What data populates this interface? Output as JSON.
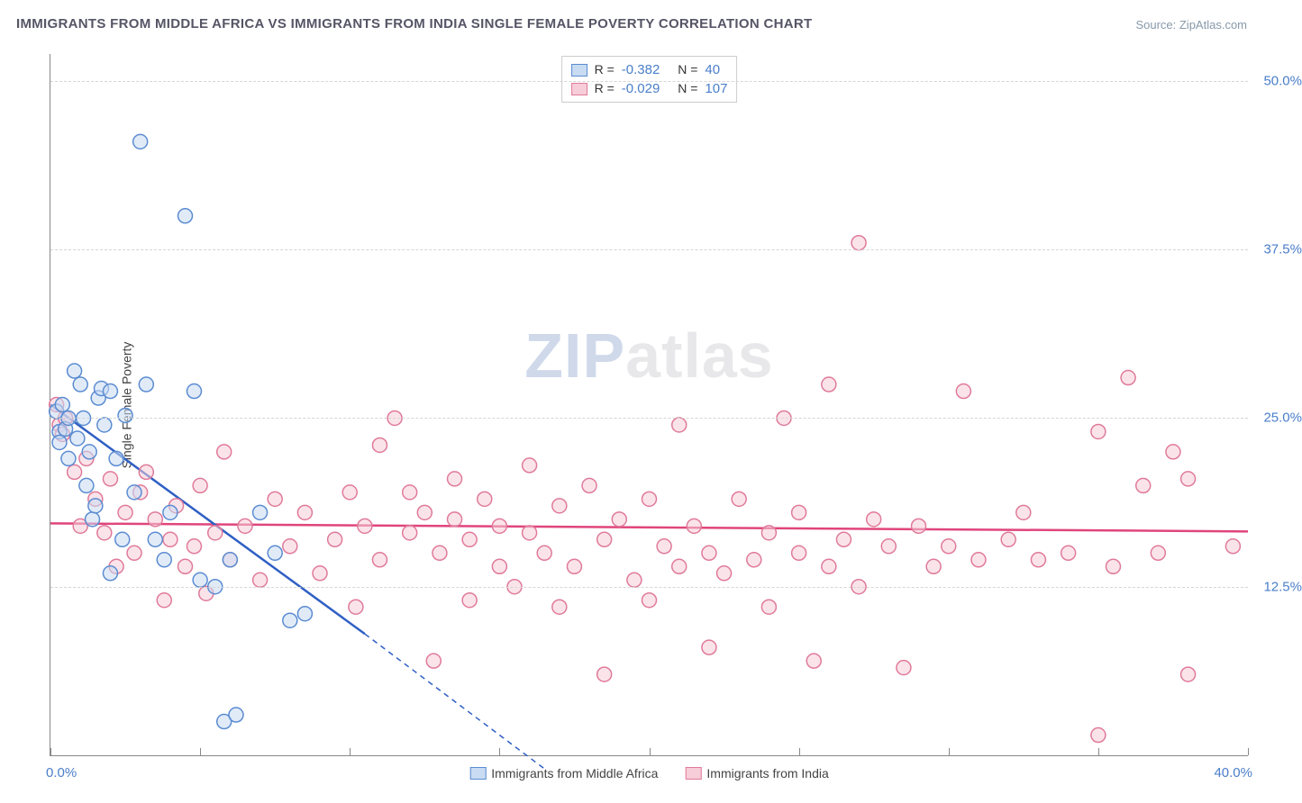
{
  "title": "IMMIGRANTS FROM MIDDLE AFRICA VS IMMIGRANTS FROM INDIA SINGLE FEMALE POVERTY CORRELATION CHART",
  "source": "Source: ZipAtlas.com",
  "ylabel": "Single Female Poverty",
  "watermark_zip": "ZIP",
  "watermark_atlas": "atlas",
  "chart": {
    "type": "scatter",
    "xlim": [
      0,
      40
    ],
    "ylim": [
      0,
      52
    ],
    "x_ticks_minor": [
      0,
      5,
      10,
      15,
      20,
      25,
      30,
      35,
      40
    ],
    "y_gridlines": [
      12.5,
      25.0,
      37.5,
      50.0
    ],
    "y_tick_labels": [
      "12.5%",
      "25.0%",
      "37.5%",
      "50.0%"
    ],
    "x_tick_left": "0.0%",
    "x_tick_right": "40.0%",
    "background_color": "#ffffff",
    "grid_color": "#d5d5d5",
    "marker_radius": 8,
    "marker_stroke_width": 1.5,
    "series": [
      {
        "name": "Immigrants from Middle Africa",
        "R": "-0.382",
        "N": "40",
        "fill": "#c8dbf2",
        "stroke": "#5b8cd1",
        "fill_opacity": 0.55,
        "trend": {
          "x1": 0,
          "y1": 26.0,
          "x2": 10.5,
          "y2": 9.0,
          "extend_x2": 16.5,
          "extend_y2": -1.0,
          "color": "#2f5fc4",
          "width": 2.5
        },
        "points": [
          [
            0.2,
            25.5
          ],
          [
            0.3,
            24.0
          ],
          [
            0.3,
            23.2
          ],
          [
            0.4,
            26.0
          ],
          [
            0.5,
            24.2
          ],
          [
            0.6,
            22.0
          ],
          [
            0.6,
            25.0
          ],
          [
            0.8,
            28.5
          ],
          [
            0.9,
            23.5
          ],
          [
            1.0,
            27.5
          ],
          [
            1.1,
            25.0
          ],
          [
            1.2,
            20.0
          ],
          [
            1.3,
            22.5
          ],
          [
            1.4,
            17.5
          ],
          [
            1.5,
            18.5
          ],
          [
            1.6,
            26.5
          ],
          [
            1.7,
            27.2
          ],
          [
            1.8,
            24.5
          ],
          [
            2.0,
            27.0
          ],
          [
            2.0,
            13.5
          ],
          [
            2.2,
            22.0
          ],
          [
            2.4,
            16.0
          ],
          [
            2.5,
            25.2
          ],
          [
            2.8,
            19.5
          ],
          [
            3.0,
            45.5
          ],
          [
            3.2,
            27.5
          ],
          [
            3.5,
            16.0
          ],
          [
            3.8,
            14.5
          ],
          [
            4.0,
            18.0
          ],
          [
            4.5,
            40.0
          ],
          [
            4.8,
            27.0
          ],
          [
            5.0,
            13.0
          ],
          [
            5.5,
            12.5
          ],
          [
            5.8,
            2.5
          ],
          [
            6.0,
            14.5
          ],
          [
            6.2,
            3.0
          ],
          [
            7.0,
            18.0
          ],
          [
            7.5,
            15.0
          ],
          [
            8.0,
            10.0
          ],
          [
            8.5,
            10.5
          ]
        ]
      },
      {
        "name": "Immigrants from India",
        "R": "-0.029",
        "N": "107",
        "fill": "#f6cdd8",
        "stroke": "#e07a9a",
        "fill_opacity": 0.55,
        "trend": {
          "x1": 0,
          "y1": 17.2,
          "x2": 40,
          "y2": 16.6,
          "color": "#e0457c",
          "width": 2.5
        },
        "points": [
          [
            0.2,
            26.0
          ],
          [
            0.3,
            24.5
          ],
          [
            0.4,
            23.8
          ],
          [
            0.5,
            25.0
          ],
          [
            0.8,
            21.0
          ],
          [
            1.0,
            17.0
          ],
          [
            1.2,
            22.0
          ],
          [
            1.5,
            19.0
          ],
          [
            1.8,
            16.5
          ],
          [
            2.0,
            20.5
          ],
          [
            2.2,
            14.0
          ],
          [
            2.5,
            18.0
          ],
          [
            2.8,
            15.0
          ],
          [
            3.0,
            19.5
          ],
          [
            3.2,
            21.0
          ],
          [
            3.5,
            17.5
          ],
          [
            3.8,
            11.5
          ],
          [
            4.0,
            16.0
          ],
          [
            4.2,
            18.5
          ],
          [
            4.5,
            14.0
          ],
          [
            4.8,
            15.5
          ],
          [
            5.0,
            20.0
          ],
          [
            5.2,
            12.0
          ],
          [
            5.5,
            16.5
          ],
          [
            5.8,
            22.5
          ],
          [
            6.0,
            14.5
          ],
          [
            6.5,
            17.0
          ],
          [
            7.0,
            13.0
          ],
          [
            7.5,
            19.0
          ],
          [
            8.0,
            15.5
          ],
          [
            8.5,
            18.0
          ],
          [
            9.0,
            13.5
          ],
          [
            9.5,
            16.0
          ],
          [
            10.0,
            19.5
          ],
          [
            10.2,
            11.0
          ],
          [
            10.5,
            17.0
          ],
          [
            11.0,
            23.0
          ],
          [
            11.0,
            14.5
          ],
          [
            11.5,
            25.0
          ],
          [
            12.0,
            16.5
          ],
          [
            12.0,
            19.5
          ],
          [
            12.5,
            18.0
          ],
          [
            12.8,
            7.0
          ],
          [
            13.0,
            15.0
          ],
          [
            13.5,
            17.5
          ],
          [
            13.5,
            20.5
          ],
          [
            14.0,
            11.5
          ],
          [
            14.0,
            16.0
          ],
          [
            14.5,
            19.0
          ],
          [
            15.0,
            14.0
          ],
          [
            15.0,
            17.0
          ],
          [
            15.5,
            12.5
          ],
          [
            16.0,
            16.5
          ],
          [
            16.0,
            21.5
          ],
          [
            16.5,
            15.0
          ],
          [
            17.0,
            18.5
          ],
          [
            17.0,
            11.0
          ],
          [
            17.5,
            14.0
          ],
          [
            18.0,
            20.0
          ],
          [
            18.5,
            16.0
          ],
          [
            18.5,
            6.0
          ],
          [
            19.0,
            17.5
          ],
          [
            19.5,
            13.0
          ],
          [
            20.0,
            19.0
          ],
          [
            20.0,
            11.5
          ],
          [
            20.5,
            15.5
          ],
          [
            21.0,
            14.0
          ],
          [
            21.0,
            24.5
          ],
          [
            21.5,
            17.0
          ],
          [
            22.0,
            15.0
          ],
          [
            22.0,
            8.0
          ],
          [
            22.5,
            13.5
          ],
          [
            23.0,
            19.0
          ],
          [
            23.5,
            14.5
          ],
          [
            24.0,
            16.5
          ],
          [
            24.0,
            11.0
          ],
          [
            24.5,
            25.0
          ],
          [
            25.0,
            15.0
          ],
          [
            25.0,
            18.0
          ],
          [
            25.5,
            7.0
          ],
          [
            26.0,
            14.0
          ],
          [
            26.0,
            27.5
          ],
          [
            26.5,
            16.0
          ],
          [
            27.0,
            38.0
          ],
          [
            27.0,
            12.5
          ],
          [
            27.5,
            17.5
          ],
          [
            28.0,
            15.5
          ],
          [
            28.5,
            6.5
          ],
          [
            29.0,
            17.0
          ],
          [
            29.5,
            14.0
          ],
          [
            30.0,
            15.5
          ],
          [
            30.5,
            27.0
          ],
          [
            31.0,
            14.5
          ],
          [
            32.0,
            16.0
          ],
          [
            32.5,
            18.0
          ],
          [
            33.0,
            14.5
          ],
          [
            34.0,
            15.0
          ],
          [
            35.0,
            24.0
          ],
          [
            35.0,
            1.5
          ],
          [
            35.5,
            14.0
          ],
          [
            36.0,
            28.0
          ],
          [
            36.5,
            20.0
          ],
          [
            37.0,
            15.0
          ],
          [
            37.5,
            22.5
          ],
          [
            38.0,
            20.5
          ],
          [
            38.0,
            6.0
          ],
          [
            39.5,
            15.5
          ]
        ]
      }
    ],
    "legend_bottom": [
      {
        "label": "Immigrants from Middle Africa",
        "fill": "#c8dbf2",
        "stroke": "#5b8cd1"
      },
      {
        "label": "Immigrants from India",
        "fill": "#f6cdd8",
        "stroke": "#e07a9a"
      }
    ]
  }
}
